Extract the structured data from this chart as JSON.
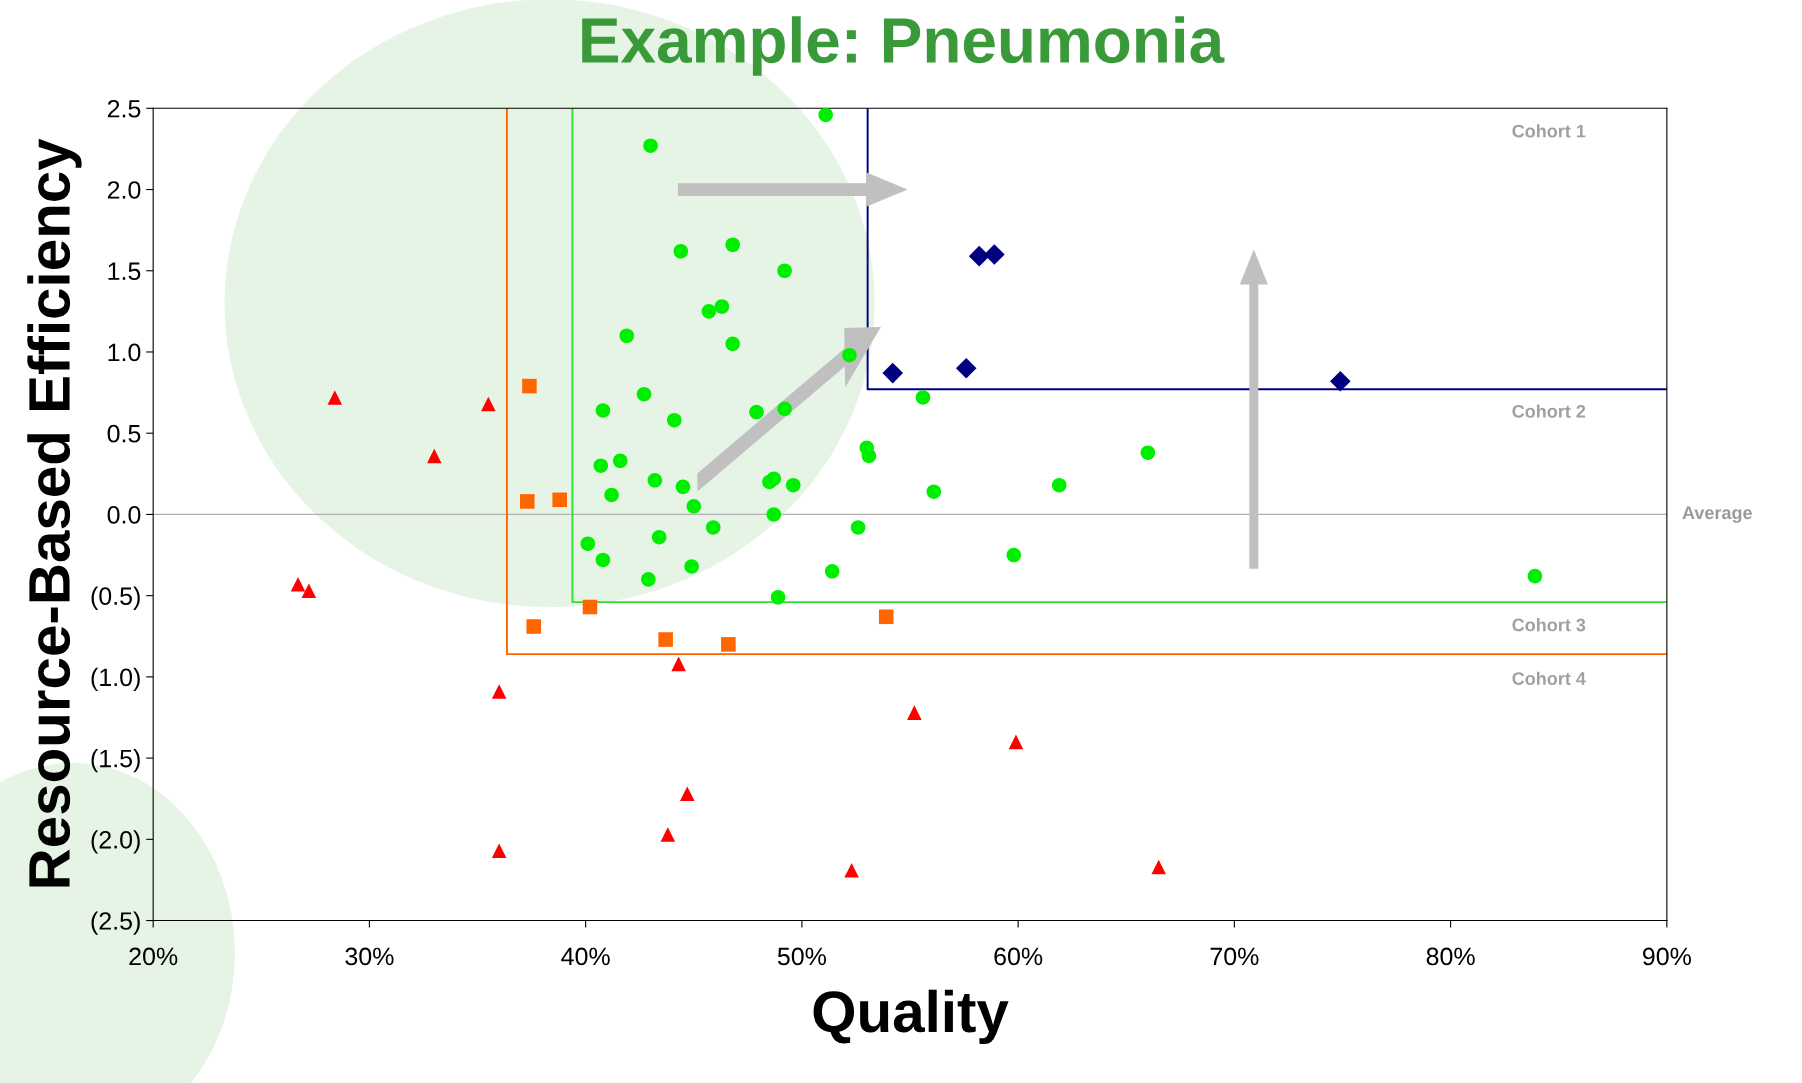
{
  "chart_data": {
    "type": "scatter",
    "title": "Example: Pneumonia",
    "xlabel": "Quality",
    "ylabel": "Resource-Based Efficiency",
    "xlim": [
      20,
      90
    ],
    "ylim": [
      -2.5,
      2.5
    ],
    "xticks": [
      {
        "value": 20,
        "label": "20%"
      },
      {
        "value": 30,
        "label": "30%"
      },
      {
        "value": 40,
        "label": "40%"
      },
      {
        "value": 50,
        "label": "50%"
      },
      {
        "value": 60,
        "label": "60%"
      },
      {
        "value": 70,
        "label": "70%"
      },
      {
        "value": 80,
        "label": "80%"
      },
      {
        "value": 90,
        "label": "90%"
      }
    ],
    "yticks": [
      {
        "value": -2.5,
        "label": "(2.5)"
      },
      {
        "value": -2,
        "label": "(2.0)"
      },
      {
        "value": -1.5,
        "label": "(1.5)"
      },
      {
        "value": -1,
        "label": "(1.0)"
      },
      {
        "value": -0.5,
        "label": "(0.5)"
      },
      {
        "value": 0,
        "label": "0.0"
      },
      {
        "value": 0.5,
        "label": "0.5"
      },
      {
        "value": 1,
        "label": "1.0"
      },
      {
        "value": 1.5,
        "label": "1.5"
      },
      {
        "value": 2,
        "label": "2.0"
      },
      {
        "value": 2.5,
        "label": "2.5"
      }
    ],
    "grid": false,
    "legend": false,
    "ref_lines": [
      {
        "axis": "y",
        "value": 0,
        "label": "Average",
        "color": "#b0b0b0"
      }
    ],
    "annotations": [
      "Cohort 1",
      "Cohort 2",
      "Cohort 3",
      "Cohort 4"
    ],
    "series": [
      {
        "type": "line",
        "color": "#ff6600",
        "marker": "none",
        "x": [
          36.36,
          36.36,
          90
        ],
        "values": [
          2.5,
          -0.86,
          -0.86
        ]
      },
      {
        "type": "line",
        "color": "#33dd33",
        "marker": "none",
        "x": [
          39.39,
          39.39,
          90
        ],
        "values": [
          2.5,
          -0.54,
          -0.54
        ]
      },
      {
        "type": "line",
        "color": "#000080",
        "marker": "none",
        "x": [
          53.04,
          53.04,
          90
        ],
        "values": [
          2.5,
          0.77,
          0.77
        ]
      },
      {
        "color": "#00ee00",
        "marker": "circle",
        "x": [
          51.1,
          43.0,
          44.4,
          46.8,
          49.2,
          45.7,
          46.3,
          41.9,
          46.8,
          52.2,
          42.7,
          40.8,
          44.1,
          47.9,
          49.2,
          55.6,
          53.0,
          53.1,
          66.0,
          41.6,
          40.7,
          43.2,
          44.5,
          48.5,
          48.7,
          49.6,
          61.9,
          56.1,
          41.2,
          45.0,
          48.7,
          45.9,
          52.6,
          40.1,
          43.4,
          40.8,
          44.9,
          51.4,
          59.8,
          42.9,
          48.9,
          83.9
        ],
        "values": [
          2.46,
          2.27,
          1.62,
          1.66,
          1.5,
          1.25,
          1.28,
          1.1,
          1.05,
          0.98,
          0.74,
          0.64,
          0.58,
          0.63,
          0.65,
          0.72,
          0.41,
          0.36,
          0.38,
          0.33,
          0.3,
          0.21,
          0.17,
          0.2,
          0.22,
          0.18,
          0.18,
          0.14,
          0.12,
          0.05,
          0.0,
          -0.08,
          -0.08,
          -0.18,
          -0.14,
          -0.28,
          -0.32,
          -0.35,
          -0.25,
          -0.4,
          -0.51,
          -0.38
        ]
      },
      {
        "color": "#000080",
        "marker": "diamond",
        "x": [
          58.2,
          58.9,
          54.2,
          57.6,
          74.9
        ],
        "values": [
          1.59,
          1.6,
          0.87,
          0.9,
          0.82
        ]
      },
      {
        "color": "#ff6600",
        "marker": "square",
        "x": [
          37.4,
          37.3,
          38.8,
          37.6,
          40.2,
          43.7,
          46.6,
          53.9
        ],
        "values": [
          0.79,
          0.08,
          0.09,
          -0.69,
          -0.57,
          -0.77,
          -0.8,
          -0.63
        ]
      },
      {
        "color": "#ff0000",
        "marker": "triangle",
        "x": [
          28.4,
          35.5,
          33.0,
          26.7,
          27.2,
          44.3,
          36.0,
          55.2,
          59.9,
          44.7,
          43.8,
          36.0,
          52.3,
          66.5
        ],
        "values": [
          0.72,
          0.68,
          0.36,
          -0.43,
          -0.47,
          -0.92,
          -1.09,
          -1.22,
          -1.4,
          -1.72,
          -1.97,
          -2.07,
          -2.19,
          -2.17
        ]
      }
    ]
  }
}
